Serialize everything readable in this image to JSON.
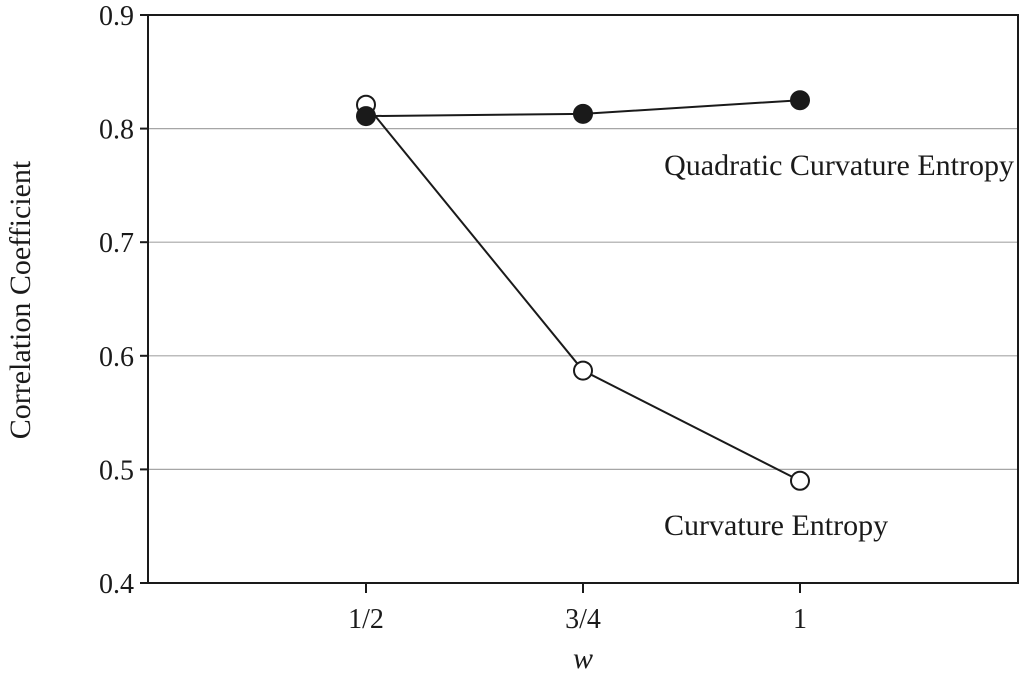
{
  "chart_data": {
    "type": "line",
    "title": "",
    "xlabel": "w",
    "ylabel": "Correlation Coefficient",
    "categories": [
      "1/2",
      "3/4",
      "1"
    ],
    "ylim": [
      0.4,
      0.9
    ],
    "yticks": [
      "0.4",
      "0.5",
      "0.6",
      "0.7",
      "0.8",
      "0.9"
    ],
    "grid": "horizontal",
    "legend": "none",
    "series": [
      {
        "name": "Quadratic Curvature Entropy",
        "values": [
          0.811,
          0.813,
          0.825
        ],
        "marker": "filled-circle"
      },
      {
        "name": "Curvature Entropy",
        "values": [
          0.821,
          0.587,
          0.49
        ],
        "marker": "open-circle"
      }
    ],
    "colors": {
      "line": "#1a1a1a",
      "grid": "#a6a6a6",
      "frame": "#1a1a1a",
      "open_fill": "#ffffff"
    }
  }
}
